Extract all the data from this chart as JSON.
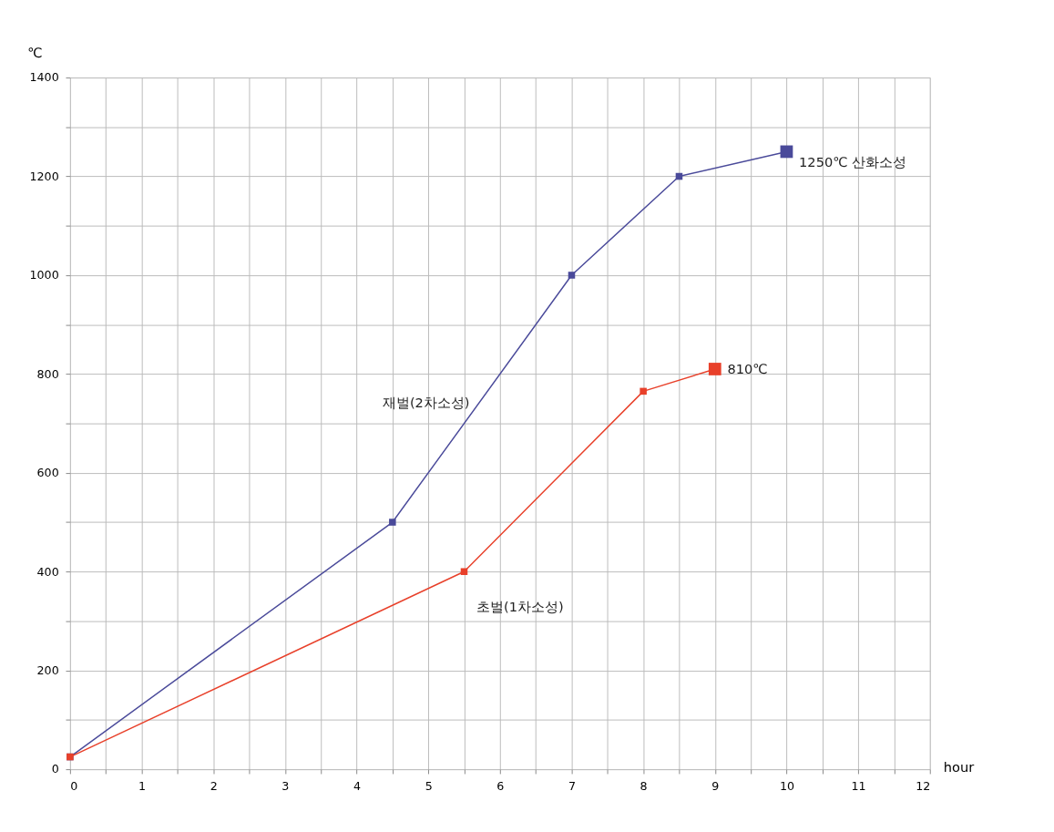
{
  "chart_data": {
    "type": "line",
    "xlabel": "hour",
    "ylabel": "℃",
    "xlim": [
      0,
      12
    ],
    "ylim": [
      0,
      1400
    ],
    "xticks": [
      0,
      {
        "value": 0.5,
        "label": null
      },
      1,
      {
        "value": 1.5,
        "label": null
      },
      2,
      {
        "value": 2.5,
        "label": null
      },
      3,
      {
        "value": 3.5,
        "label": null
      },
      4,
      {
        "value": 4.5,
        "label": null
      },
      5,
      {
        "value": 5.5,
        "label": null
      },
      6,
      {
        "value": 6.5,
        "label": null
      },
      7,
      {
        "value": 7.5,
        "label": null
      },
      8,
      {
        "value": 8.5,
        "label": null
      },
      9,
      {
        "value": 9.5,
        "label": null
      },
      10,
      {
        "value": 10.5,
        "label": null
      },
      11,
      {
        "value": 11.5,
        "label": null
      },
      12
    ],
    "yticks": [
      0,
      {
        "value": 100,
        "label": null
      },
      200,
      {
        "value": 300,
        "label": null
      },
      400,
      {
        "value": 500,
        "label": null
      },
      600,
      {
        "value": 700,
        "label": null
      },
      800,
      {
        "value": 900,
        "label": null
      },
      1000,
      {
        "value": 1100,
        "label": null
      },
      1200,
      {
        "value": 1300,
        "label": null
      },
      1400
    ],
    "grid": true,
    "marker": "square",
    "line_style": "solid",
    "series": [
      {
        "name": "재벌(2차소성)",
        "color": "#4a4a9a",
        "x": [
          0,
          4.5,
          7,
          8.5,
          10
        ],
        "values": [
          25,
          500,
          1000,
          1200,
          1250
        ]
      },
      {
        "name": "초벌(1차소성)",
        "color": "#e8402a",
        "x": [
          0,
          5.5,
          8,
          9
        ],
        "values": [
          25,
          400,
          765,
          810
        ]
      }
    ],
    "annotations": [
      {
        "text": "1250℃ 산화소성",
        "x": 10,
        "y": 1250
      },
      {
        "text": "810℃",
        "x": 9,
        "y": 810
      }
    ]
  }
}
